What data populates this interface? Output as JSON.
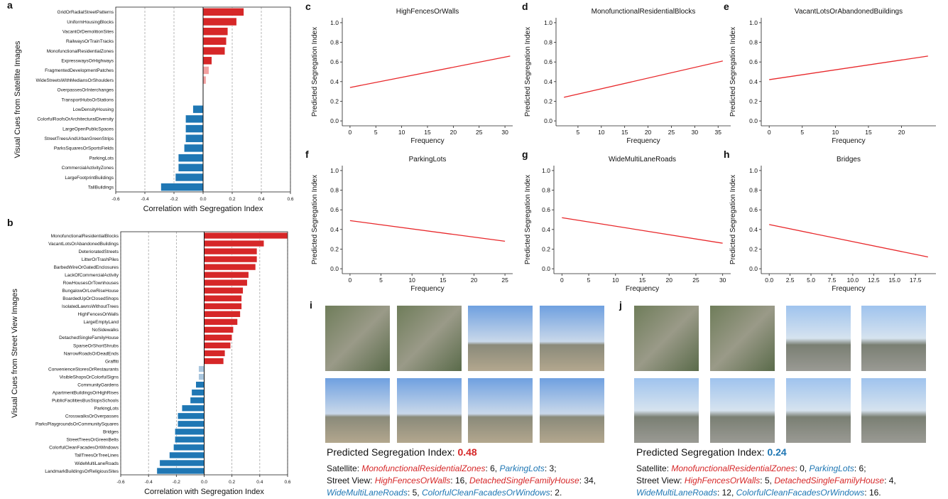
{
  "chart_data": [
    {
      "type": "barh",
      "panel_label": "a",
      "ylabel": "Visual Cues from Satellite Images",
      "xlabel": "Correlation with Segregation Index",
      "categories": [
        "GridOrRadialStreetPatterns",
        "UniformHousingBlocks",
        "VacantOrDemolitionSites",
        "RailwaysOrTrainTracks",
        "MonofunctionalResidentialZones",
        "ExpresswaysOrHighways",
        "FragmentedDevelopmentPatches",
        "WideStreetsWithMediansOrShoulders",
        "OverpassesOrInterchanges",
        "TransportHubsOrStations",
        "LowDensityHousing",
        "ColorfulRoofsOrArchitecturalDiversity",
        "LargeOpenPublicSpaces",
        "StreetTreesAndUrbanGreenStrips",
        "ParksSquaresOrSportsFields",
        "ParkingLots",
        "CommercialActivityZones",
        "LargeFootprintBuildings",
        "TallBuildings"
      ],
      "values": [
        0.28,
        0.23,
        0.17,
        0.16,
        0.15,
        0.06,
        0.04,
        0.02,
        0.0,
        0.0,
        -0.07,
        -0.12,
        -0.12,
        -0.12,
        -0.13,
        -0.17,
        -0.17,
        -0.19,
        -0.29
      ],
      "colors": [
        "#d62728",
        "#d62728",
        "#d62728",
        "#d62728",
        "#d62728",
        "#d62728",
        "#f2a0a0",
        "#f2a0a0",
        "#d62728",
        "#d62728",
        "#1f77b4",
        "#1f77b4",
        "#1f77b4",
        "#1f77b4",
        "#1f77b4",
        "#1f77b4",
        "#1f77b4",
        "#1f77b4",
        "#1f77b4"
      ],
      "xlim": [
        -0.6,
        0.6
      ],
      "xticks": [
        -0.6,
        -0.4,
        -0.2,
        {
          "value": 0,
          "label": "0.0"
        },
        0.2,
        0.4,
        0.6
      ],
      "grid": true
    },
    {
      "type": "barh",
      "panel_label": "b",
      "ylabel": "Visual Cues from Street View Images",
      "xlabel": "Correlation with Segregation Index",
      "categories": [
        "MonofunctionalResidentialBlocks",
        "VacantLotsOrAbandonedBuildings",
        "DeterioratedStreets",
        "LitterOrTrashPiles",
        "BarbedWireOrGatedEnclosures",
        "LackOfCommercialActivity",
        "RowHousesOrTownhouses",
        "BungalowOrLowRiseHouse",
        "BoardedUpOrClosedShops",
        "IsolatedLawnsWithoutTrees",
        "HighFencesOrWalls",
        "LargeEmptyLand",
        "NoSidewalks",
        "DetachedSingleFamilyHouse",
        "SparseOrShortShrubs",
        "NarrowRoadsOrDeadEnds",
        "Graffiti",
        "ConvenienceStoresOrRestaurants",
        "VisibleShopsOrColorfulSigns",
        "CommunityGardens",
        "ApartmentBuildingsOrHighRises",
        "PublicFacilitiesBusStopsSchools",
        "ParkingLots",
        "CrosswalksOrOverpasses",
        "ParksPlaygroundsOrCommunitySquares",
        "Bridges",
        "StreetTreesOrGreenBelts",
        "ColorfulCleanFacadesOrWindows",
        "TallTreesOrTreeLines",
        "WideMultiLaneRoads",
        "LandmarkBuildingsOrReligiousSites"
      ],
      "values": [
        0.6,
        0.43,
        0.38,
        0.38,
        0.37,
        0.32,
        0.31,
        0.28,
        0.27,
        0.27,
        0.26,
        0.24,
        0.21,
        0.2,
        0.19,
        0.15,
        0.14,
        -0.04,
        -0.04,
        -0.06,
        -0.09,
        -0.1,
        -0.16,
        -0.19,
        -0.19,
        -0.21,
        -0.21,
        -0.22,
        -0.25,
        -0.32,
        -0.34
      ],
      "colors": [
        "#d62728",
        "#d62728",
        "#d62728",
        "#d62728",
        "#d62728",
        "#d62728",
        "#d62728",
        "#d62728",
        "#d62728",
        "#d62728",
        "#d62728",
        "#d62728",
        "#d62728",
        "#d62728",
        "#d62728",
        "#d62728",
        "#d62728",
        "#a9c6de",
        "#a9c6de",
        "#1f77b4",
        "#1f77b4",
        "#1f77b4",
        "#1f77b4",
        "#1f77b4",
        "#1f77b4",
        "#1f77b4",
        "#1f77b4",
        "#1f77b4",
        "#1f77b4",
        "#1f77b4",
        "#1f77b4"
      ],
      "xlim": [
        -0.6,
        0.6
      ],
      "xticks": [
        -0.6,
        -0.4,
        -0.2,
        {
          "value": 0,
          "label": "0.0"
        },
        0.2,
        0.4,
        0.6
      ],
      "grid": true
    },
    {
      "type": "line",
      "panel_label": "c",
      "title": "HighFencesOrWalls",
      "xlabel": "Frequency",
      "ylabel": "Predicted Segregation Index",
      "x": [
        0,
        31
      ],
      "values": [
        0.34,
        0.66
      ],
      "color": "#e8272a",
      "xlim": [
        -1.5,
        31.5
      ],
      "xticks": [
        0,
        5,
        10,
        15,
        20,
        25,
        30
      ],
      "ylim": [
        -0.05,
        1.05
      ],
      "yticks": [
        {
          "value": 0,
          "label": "0.0"
        },
        0.2,
        0.4,
        0.6,
        0.8,
        {
          "value": 1,
          "label": "1.0"
        }
      ]
    },
    {
      "type": "line",
      "panel_label": "d",
      "title": "MonofunctionalResidentialBlocks",
      "xlabel": "Frequency",
      "ylabel": "Predicted Segregation Index",
      "x": [
        2,
        36
      ],
      "values": [
        0.24,
        0.61
      ],
      "color": "#e8272a",
      "xlim": [
        0.3,
        37.7
      ],
      "xticks": [
        5,
        10,
        15,
        20,
        25,
        30,
        35
      ],
      "ylim": [
        -0.05,
        1.05
      ],
      "yticks": [
        {
          "value": 0,
          "label": "0.0"
        },
        0.2,
        0.4,
        0.6,
        0.8,
        {
          "value": 1,
          "label": "1.0"
        }
      ]
    },
    {
      "type": "line",
      "panel_label": "e",
      "title": "VacantLotsOrAbandonedBuildings",
      "xlabel": "Frequency",
      "ylabel": "Predicted Segregation Index",
      "x": [
        0,
        24
      ],
      "values": [
        0.42,
        0.66
      ],
      "color": "#e8272a",
      "xlim": [
        -1.2,
        25.2
      ],
      "xticks": [
        0,
        5,
        10,
        15,
        20
      ],
      "ylim": [
        -0.05,
        1.05
      ],
      "yticks": [
        {
          "value": 0,
          "label": "0.0"
        },
        0.2,
        0.4,
        0.6,
        0.8,
        {
          "value": 1,
          "label": "1.0"
        }
      ]
    },
    {
      "type": "line",
      "panel_label": "f",
      "title": "ParkingLots",
      "xlabel": "Frequency",
      "ylabel": "Predicted Segregation Index",
      "x": [
        0,
        25
      ],
      "values": [
        0.49,
        0.28
      ],
      "color": "#e8272a",
      "xlim": [
        -1.25,
        26.25
      ],
      "xticks": [
        0,
        5,
        10,
        15,
        20,
        25
      ],
      "ylim": [
        -0.05,
        1.05
      ],
      "yticks": [
        {
          "value": 0,
          "label": "0.0"
        },
        0.2,
        0.4,
        0.6,
        0.8,
        {
          "value": 1,
          "label": "1.0"
        }
      ]
    },
    {
      "type": "line",
      "panel_label": "g",
      "title": "WideMultiLaneRoads",
      "xlabel": "Frequency",
      "ylabel": "Predicted Segregation Index",
      "x": [
        0,
        30
      ],
      "values": [
        0.52,
        0.26
      ],
      "color": "#e8272a",
      "xlim": [
        -1.5,
        31.5
      ],
      "xticks": [
        0,
        5,
        10,
        15,
        20,
        25,
        30
      ],
      "ylim": [
        -0.05,
        1.05
      ],
      "yticks": [
        {
          "value": 0,
          "label": "0.0"
        },
        0.2,
        0.4,
        0.6,
        0.8,
        {
          "value": 1,
          "label": "1.0"
        }
      ]
    },
    {
      "type": "line",
      "panel_label": "h",
      "title": "Bridges",
      "xlabel": "Frequency",
      "ylabel": "Predicted Segregation Index",
      "x": [
        0,
        19
      ],
      "values": [
        0.45,
        0.12
      ],
      "color": "#e8272a",
      "xlim": [
        -0.95,
        19.95
      ],
      "xticks": [
        {
          "value": 0,
          "label": "0.0"
        },
        2.5,
        {
          "value": 5,
          "label": "5.0"
        },
        7.5,
        {
          "value": 10,
          "label": "10.0"
        },
        12.5,
        {
          "value": 15,
          "label": "15.0"
        },
        17.5
      ],
      "ylim": [
        -0.05,
        1.05
      ],
      "yticks": [
        {
          "value": 0,
          "label": "0.0"
        },
        0.2,
        0.4,
        0.6,
        0.8,
        {
          "value": 1,
          "label": "1.0"
        }
      ]
    }
  ],
  "examples": [
    {
      "panel_label": "i",
      "index_label": "Predicted Segregation Index: ",
      "index_value": "0.48",
      "index_color": "#d62728",
      "lines": [
        [
          {
            "text": "Satellite: "
          },
          {
            "text": "MonofunctionalResidentialZones",
            "color": "#d62728"
          },
          {
            "text": ": 6, "
          },
          {
            "text": "ParkingLots",
            "color": "#1f77b4"
          },
          {
            "text": ": 3;"
          }
        ],
        [
          {
            "text": "Street View: "
          },
          {
            "text": "HighFencesOrWalls",
            "color": "#d62728"
          },
          {
            "text": ": 16, "
          },
          {
            "text": "DetachedSingleFamilyHouse",
            "color": "#d62728"
          },
          {
            "text": ": 34,"
          }
        ],
        [
          {
            "text": "WideMultiLaneRoads",
            "color": "#1f77b4"
          },
          {
            "text": ": 5, "
          },
          {
            "text": "ColorfulCleanFacadesOrWindows",
            "color": "#1f77b4"
          },
          {
            "text": ": 2."
          }
        ]
      ]
    },
    {
      "panel_label": "j",
      "index_label": "Predicted Segregation Index: ",
      "index_value": "0.24",
      "index_color": "#1f77b4",
      "lines": [
        [
          {
            "text": "Satellite: "
          },
          {
            "text": "MonofunctionalResidentialZones",
            "color": "#d62728"
          },
          {
            "text": ": 0, "
          },
          {
            "text": "ParkingLots",
            "color": "#1f77b4"
          },
          {
            "text": ": 6;"
          }
        ],
        [
          {
            "text": "Street View: "
          },
          {
            "text": "HighFencesOrWalls",
            "color": "#d62728"
          },
          {
            "text": ": 5, "
          },
          {
            "text": "DetachedSingleFamilyHouse",
            "color": "#d62728"
          },
          {
            "text": ": 4,"
          }
        ],
        [
          {
            "text": "WideMultiLaneRoads",
            "color": "#1f77b4"
          },
          {
            "text": ": 12, "
          },
          {
            "text": "ColorfulCleanFacadesOrWindows",
            "color": "#1f77b4"
          },
          {
            "text": ": 16."
          }
        ]
      ]
    }
  ]
}
